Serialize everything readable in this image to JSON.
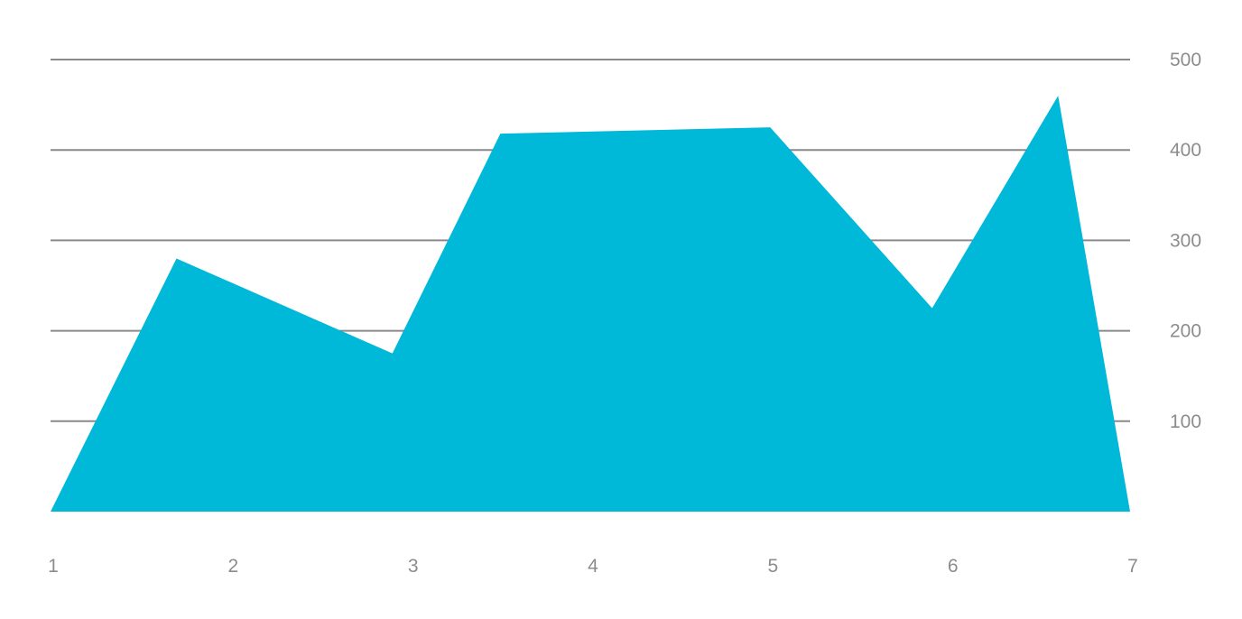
{
  "chart_data": {
    "type": "area",
    "x": [
      1,
      1.7,
      2.9,
      3.5,
      5.0,
      5.9,
      6.6,
      7
    ],
    "series": [
      {
        "values": [
          0,
          280,
          175,
          418,
          425,
          225,
          460,
          0
        ],
        "color": "#00b8d8"
      }
    ],
    "x_ticks": [
      "1",
      "2",
      "3",
      "4",
      "5",
      "6",
      "7"
    ],
    "y_ticks": [
      "100",
      "200",
      "300",
      "400",
      "500"
    ],
    "xlim": [
      1,
      7
    ],
    "ylim": [
      0,
      500
    ],
    "y_axis_position": "right",
    "grid": true,
    "title": "",
    "xlabel": "",
    "ylabel": ""
  }
}
